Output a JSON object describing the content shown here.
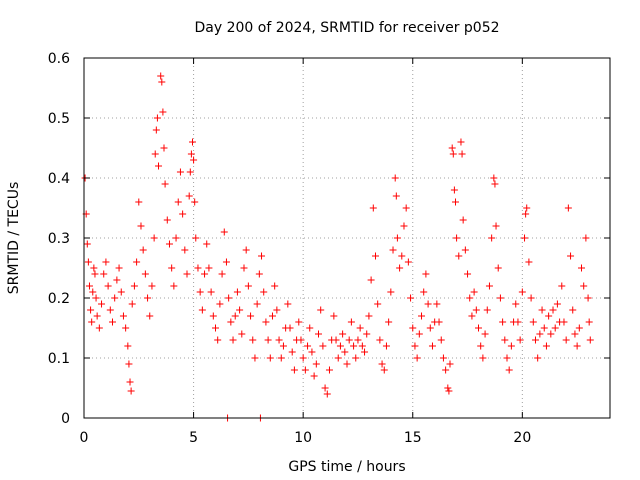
{
  "chart_data": {
    "type": "scatter",
    "title": "Day 200 of 2024, SRMTID for receiver p052",
    "xlabel": "GPS time / hours",
    "ylabel": "SRMTID / TECUs",
    "xlim": [
      0,
      24
    ],
    "ylim": [
      0,
      0.6
    ],
    "grid": true,
    "marker": "plus",
    "color": "#ff0000",
    "x_ticks": [
      0,
      5,
      10,
      15,
      20
    ],
    "x_tick_labels": [
      "0",
      "5",
      "10",
      "15",
      "20"
    ],
    "y_ticks": [
      0,
      0.1,
      0.2,
      0.3,
      0.4,
      0.5,
      0.6
    ],
    "y_tick_labels": [
      "0",
      "0.1",
      "0.2",
      "0.3",
      "0.4",
      "0.5",
      "0.6"
    ],
    "series": [
      {
        "name": "p052",
        "points": [
          [
            0.05,
            0.4
          ],
          [
            0.1,
            0.34
          ],
          [
            0.15,
            0.29
          ],
          [
            0.2,
            0.26
          ],
          [
            0.25,
            0.22
          ],
          [
            0.3,
            0.18
          ],
          [
            0.35,
            0.16
          ],
          [
            0.4,
            0.21
          ],
          [
            0.45,
            0.25
          ],
          [
            0.5,
            0.24
          ],
          [
            0.55,
            0.2
          ],
          [
            0.6,
            0.17
          ],
          [
            0.7,
            0.15
          ],
          [
            0.8,
            0.19
          ],
          [
            0.9,
            0.24
          ],
          [
            1.0,
            0.26
          ],
          [
            1.1,
            0.22
          ],
          [
            1.2,
            0.18
          ],
          [
            1.3,
            0.16
          ],
          [
            1.4,
            0.2
          ],
          [
            1.5,
            0.23
          ],
          [
            1.6,
            0.25
          ],
          [
            1.7,
            0.21
          ],
          [
            1.8,
            0.17
          ],
          [
            1.9,
            0.15
          ],
          [
            2.0,
            0.12
          ],
          [
            2.05,
            0.09
          ],
          [
            2.1,
            0.06
          ],
          [
            2.15,
            0.045
          ],
          [
            2.2,
            0.19
          ],
          [
            2.3,
            0.22
          ],
          [
            2.4,
            0.26
          ],
          [
            2.5,
            0.36
          ],
          [
            2.6,
            0.32
          ],
          [
            2.7,
            0.28
          ],
          [
            2.8,
            0.24
          ],
          [
            2.9,
            0.2
          ],
          [
            3.0,
            0.17
          ],
          [
            3.1,
            0.22
          ],
          [
            3.2,
            0.3
          ],
          [
            3.25,
            0.44
          ],
          [
            3.3,
            0.48
          ],
          [
            3.35,
            0.5
          ],
          [
            3.4,
            0.42
          ],
          [
            3.5,
            0.57
          ],
          [
            3.55,
            0.56
          ],
          [
            3.6,
            0.51
          ],
          [
            3.65,
            0.45
          ],
          [
            3.7,
            0.39
          ],
          [
            3.8,
            0.33
          ],
          [
            3.9,
            0.29
          ],
          [
            4.0,
            0.25
          ],
          [
            4.1,
            0.22
          ],
          [
            4.2,
            0.3
          ],
          [
            4.3,
            0.36
          ],
          [
            4.4,
            0.41
          ],
          [
            4.5,
            0.34
          ],
          [
            4.6,
            0.28
          ],
          [
            4.7,
            0.24
          ],
          [
            4.8,
            0.37
          ],
          [
            4.85,
            0.41
          ],
          [
            4.9,
            0.44
          ],
          [
            4.95,
            0.46
          ],
          [
            5.0,
            0.43
          ],
          [
            5.05,
            0.36
          ],
          [
            5.1,
            0.3
          ],
          [
            5.2,
            0.25
          ],
          [
            5.3,
            0.21
          ],
          [
            5.4,
            0.18
          ],
          [
            5.5,
            0.24
          ],
          [
            5.6,
            0.29
          ],
          [
            5.7,
            0.25
          ],
          [
            5.8,
            0.21
          ],
          [
            5.9,
            0.17
          ],
          [
            6.0,
            0.15
          ],
          [
            6.1,
            0.13
          ],
          [
            6.2,
            0.19
          ],
          [
            6.3,
            0.24
          ],
          [
            6.4,
            0.31
          ],
          [
            6.5,
            0.26
          ],
          [
            6.55,
            0.0
          ],
          [
            6.6,
            0.2
          ],
          [
            6.7,
            0.16
          ],
          [
            6.8,
            0.13
          ],
          [
            6.9,
            0.17
          ],
          [
            7.0,
            0.21
          ],
          [
            7.1,
            0.18
          ],
          [
            7.2,
            0.14
          ],
          [
            7.3,
            0.25
          ],
          [
            7.4,
            0.28
          ],
          [
            7.5,
            0.22
          ],
          [
            7.6,
            0.17
          ],
          [
            7.7,
            0.13
          ],
          [
            7.8,
            0.1
          ],
          [
            7.9,
            0.19
          ],
          [
            8.0,
            0.24
          ],
          [
            8.05,
            0.0
          ],
          [
            8.1,
            0.27
          ],
          [
            8.2,
            0.21
          ],
          [
            8.3,
            0.16
          ],
          [
            8.4,
            0.13
          ],
          [
            8.5,
            0.1
          ],
          [
            8.6,
            0.17
          ],
          [
            8.7,
            0.22
          ],
          [
            8.8,
            0.18
          ],
          [
            8.9,
            0.13
          ],
          [
            9.0,
            0.1
          ],
          [
            9.1,
            0.12
          ],
          [
            9.2,
            0.15
          ],
          [
            9.3,
            0.19
          ],
          [
            9.4,
            0.15
          ],
          [
            9.5,
            0.11
          ],
          [
            9.6,
            0.08
          ],
          [
            9.7,
            0.13
          ],
          [
            9.8,
            0.16
          ],
          [
            9.9,
            0.13
          ],
          [
            10.0,
            0.1
          ],
          [
            10.1,
            0.08
          ],
          [
            10.2,
            0.12
          ],
          [
            10.3,
            0.15
          ],
          [
            10.4,
            0.11
          ],
          [
            10.5,
            0.07
          ],
          [
            10.6,
            0.09
          ],
          [
            10.7,
            0.14
          ],
          [
            10.8,
            0.18
          ],
          [
            10.9,
            0.12
          ],
          [
            11.0,
            0.05
          ],
          [
            11.1,
            0.04
          ],
          [
            11.2,
            0.08
          ],
          [
            11.3,
            0.13
          ],
          [
            11.4,
            0.17
          ],
          [
            11.5,
            0.13
          ],
          [
            11.6,
            0.1
          ],
          [
            11.7,
            0.12
          ],
          [
            11.8,
            0.14
          ],
          [
            11.9,
            0.11
          ],
          [
            12.0,
            0.09
          ],
          [
            12.1,
            0.13
          ],
          [
            12.2,
            0.16
          ],
          [
            12.3,
            0.12
          ],
          [
            12.4,
            0.1
          ],
          [
            12.5,
            0.13
          ],
          [
            12.6,
            0.15
          ],
          [
            12.7,
            0.12
          ],
          [
            12.8,
            0.11
          ],
          [
            12.9,
            0.14
          ],
          [
            13.0,
            0.17
          ],
          [
            13.1,
            0.23
          ],
          [
            13.2,
            0.35
          ],
          [
            13.3,
            0.27
          ],
          [
            13.4,
            0.19
          ],
          [
            13.5,
            0.13
          ],
          [
            13.6,
            0.09
          ],
          [
            13.7,
            0.08
          ],
          [
            13.8,
            0.12
          ],
          [
            13.9,
            0.16
          ],
          [
            14.0,
            0.21
          ],
          [
            14.1,
            0.28
          ],
          [
            14.2,
            0.4
          ],
          [
            14.25,
            0.37
          ],
          [
            14.3,
            0.3
          ],
          [
            14.4,
            0.25
          ],
          [
            14.5,
            0.27
          ],
          [
            14.6,
            0.32
          ],
          [
            14.7,
            0.35
          ],
          [
            14.8,
            0.26
          ],
          [
            14.9,
            0.2
          ],
          [
            15.0,
            0.15
          ],
          [
            15.1,
            0.12
          ],
          [
            15.2,
            0.1
          ],
          [
            15.3,
            0.14
          ],
          [
            15.4,
            0.17
          ],
          [
            15.5,
            0.21
          ],
          [
            15.6,
            0.24
          ],
          [
            15.7,
            0.19
          ],
          [
            15.8,
            0.15
          ],
          [
            15.9,
            0.12
          ],
          [
            16.0,
            0.16
          ],
          [
            16.1,
            0.19
          ],
          [
            16.2,
            0.16
          ],
          [
            16.3,
            0.13
          ],
          [
            16.4,
            0.1
          ],
          [
            16.5,
            0.08
          ],
          [
            16.6,
            0.05
          ],
          [
            16.65,
            0.045
          ],
          [
            16.7,
            0.09
          ],
          [
            16.8,
            0.45
          ],
          [
            16.85,
            0.44
          ],
          [
            16.9,
            0.38
          ],
          [
            16.95,
            0.36
          ],
          [
            17.0,
            0.3
          ],
          [
            17.1,
            0.27
          ],
          [
            17.2,
            0.46
          ],
          [
            17.25,
            0.44
          ],
          [
            17.3,
            0.33
          ],
          [
            17.4,
            0.28
          ],
          [
            17.5,
            0.24
          ],
          [
            17.6,
            0.2
          ],
          [
            17.7,
            0.17
          ],
          [
            17.8,
            0.21
          ],
          [
            17.9,
            0.18
          ],
          [
            18.0,
            0.15
          ],
          [
            18.1,
            0.12
          ],
          [
            18.2,
            0.1
          ],
          [
            18.3,
            0.14
          ],
          [
            18.4,
            0.18
          ],
          [
            18.5,
            0.22
          ],
          [
            18.6,
            0.3
          ],
          [
            18.7,
            0.4
          ],
          [
            18.75,
            0.39
          ],
          [
            18.8,
            0.32
          ],
          [
            18.9,
            0.25
          ],
          [
            19.0,
            0.2
          ],
          [
            19.1,
            0.16
          ],
          [
            19.2,
            0.13
          ],
          [
            19.3,
            0.1
          ],
          [
            19.4,
            0.08
          ],
          [
            19.5,
            0.12
          ],
          [
            19.6,
            0.16
          ],
          [
            19.7,
            0.19
          ],
          [
            19.8,
            0.16
          ],
          [
            19.9,
            0.13
          ],
          [
            20.0,
            0.21
          ],
          [
            20.1,
            0.3
          ],
          [
            20.15,
            0.34
          ],
          [
            20.2,
            0.35
          ],
          [
            20.3,
            0.26
          ],
          [
            20.4,
            0.2
          ],
          [
            20.5,
            0.16
          ],
          [
            20.6,
            0.13
          ],
          [
            20.7,
            0.1
          ],
          [
            20.8,
            0.14
          ],
          [
            20.9,
            0.18
          ],
          [
            21.0,
            0.15
          ],
          [
            21.1,
            0.12
          ],
          [
            21.2,
            0.17
          ],
          [
            21.3,
            0.14
          ],
          [
            21.4,
            0.18
          ],
          [
            21.5,
            0.15
          ],
          [
            21.6,
            0.19
          ],
          [
            21.7,
            0.16
          ],
          [
            21.8,
            0.22
          ],
          [
            21.9,
            0.16
          ],
          [
            22.0,
            0.13
          ],
          [
            22.1,
            0.35
          ],
          [
            22.2,
            0.27
          ],
          [
            22.3,
            0.18
          ],
          [
            22.4,
            0.14
          ],
          [
            22.5,
            0.12
          ],
          [
            22.6,
            0.15
          ],
          [
            22.7,
            0.25
          ],
          [
            22.8,
            0.22
          ],
          [
            22.9,
            0.3
          ],
          [
            23.0,
            0.2
          ],
          [
            23.05,
            0.16
          ],
          [
            23.1,
            0.13
          ]
        ]
      }
    ]
  }
}
